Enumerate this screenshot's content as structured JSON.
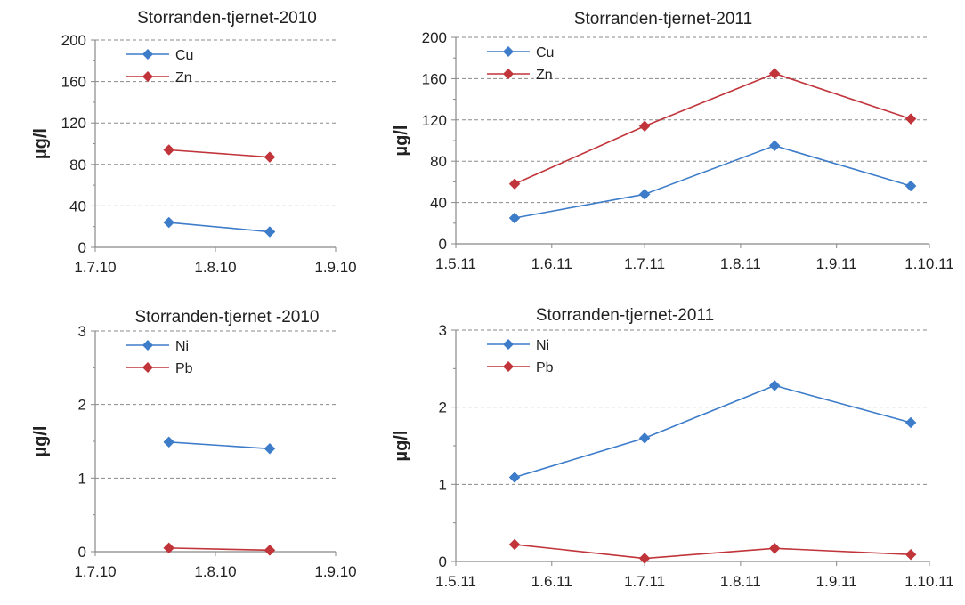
{
  "chart_data": [
    {
      "type": "line",
      "title": "Storranden-tjernet-2010",
      "ylabel": "µg/l",
      "xlabel": "",
      "x_ticks": [
        "1.7.10",
        "1.8.10",
        "1.9.10"
      ],
      "x_tick_dates": [
        "2010-07-01",
        "2010-08-01",
        "2010-09-01"
      ],
      "y_ticks": [
        0,
        40,
        80,
        120,
        160,
        200
      ],
      "ylim": [
        0,
        200
      ],
      "grid": "horizontal dashed",
      "legend": "top-left",
      "series": [
        {
          "name": "Cu",
          "color": "#3d7cc9",
          "x": [
            "2010-07-20",
            "2010-08-15"
          ],
          "values": [
            24,
            15
          ]
        },
        {
          "name": "Zn",
          "color": "#c0343a",
          "x": [
            "2010-07-20",
            "2010-08-15"
          ],
          "values": [
            94,
            87
          ]
        }
      ]
    },
    {
      "type": "line",
      "title": "Storranden-tjernet-2011",
      "ylabel": "µg/l",
      "xlabel": "",
      "x_ticks": [
        "1.5.11",
        "1.6.11",
        "1.7.11",
        "1.8.11",
        "1.9.11",
        "1.10.11"
      ],
      "x_tick_dates": [
        "2011-05-01",
        "2011-06-01",
        "2011-07-01",
        "2011-08-01",
        "2011-09-01",
        "2011-10-01"
      ],
      "y_ticks": [
        0,
        40,
        80,
        120,
        160,
        200
      ],
      "ylim": [
        0,
        200
      ],
      "grid": "horizontal dashed",
      "legend": "top-left",
      "series": [
        {
          "name": "Cu",
          "color": "#3d7cc9",
          "x": [
            "2011-05-20",
            "2011-07-01",
            "2011-08-12",
            "2011-09-25"
          ],
          "values": [
            25,
            48,
            95,
            56
          ]
        },
        {
          "name": "Zn",
          "color": "#c0343a",
          "x": [
            "2011-05-20",
            "2011-07-01",
            "2011-08-12",
            "2011-09-25"
          ],
          "values": [
            58,
            114,
            165,
            121
          ]
        }
      ]
    },
    {
      "type": "line",
      "title": "Storranden-tjernet -2010",
      "ylabel": "µg/l",
      "xlabel": "",
      "x_ticks": [
        "1.7.10",
        "1.8.10",
        "1.9.10"
      ],
      "x_tick_dates": [
        "2010-07-01",
        "2010-08-01",
        "2010-09-01"
      ],
      "y_ticks": [
        0,
        1,
        2,
        3
      ],
      "ylim": [
        0,
        3
      ],
      "grid": "horizontal dashed",
      "legend": "top-left",
      "series": [
        {
          "name": "Ni",
          "color": "#3d7cc9",
          "x": [
            "2010-07-20",
            "2010-08-15"
          ],
          "values": [
            1.49,
            1.4
          ]
        },
        {
          "name": "Pb",
          "color": "#c0343a",
          "x": [
            "2010-07-20",
            "2010-08-15"
          ],
          "values": [
            0.05,
            0.02
          ]
        }
      ]
    },
    {
      "type": "line",
      "title": "Storranden-tjernet-2011",
      "ylabel": "µg/l",
      "xlabel": "",
      "x_ticks": [
        "1.5.11",
        "1.6.11",
        "1.7.11",
        "1.8.11",
        "1.9.11",
        "1.10.11"
      ],
      "x_tick_dates": [
        "2011-05-01",
        "2011-06-01",
        "2011-07-01",
        "2011-08-01",
        "2011-09-01",
        "2011-10-01"
      ],
      "y_ticks": [
        0,
        1,
        2,
        3
      ],
      "ylim": [
        0,
        3
      ],
      "grid": "horizontal dashed",
      "legend": "top-left",
      "series": [
        {
          "name": "Ni",
          "color": "#3d7cc9",
          "x": [
            "2011-05-20",
            "2011-07-01",
            "2011-08-12",
            "2011-09-25"
          ],
          "values": [
            1.09,
            1.6,
            2.28,
            1.8
          ]
        },
        {
          "name": "Pb",
          "color": "#c0343a",
          "x": [
            "2011-05-20",
            "2011-07-01",
            "2011-08-12",
            "2011-09-25"
          ],
          "values": [
            0.22,
            0.04,
            0.17,
            0.09
          ]
        }
      ]
    }
  ]
}
